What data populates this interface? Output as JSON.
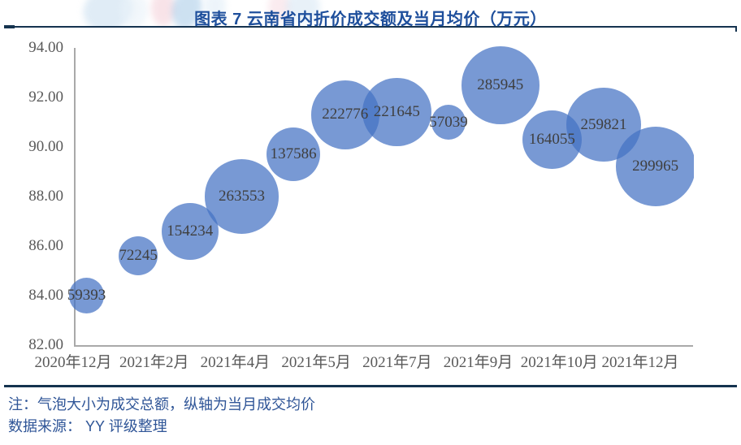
{
  "figure": {
    "title": "图表 7  云南省内折价成交额及当月均价（万元）",
    "note": "注：气泡大小为成交总额，纵轴为当月成交均价",
    "source": "数据来源： YY 评级整理"
  },
  "chart_data": {
    "type": "bubble",
    "title": "云南省内折价成交额及当月均价（万元）",
    "xlabel": "",
    "ylabel": "当月成交均价",
    "ylim": [
      82,
      94
    ],
    "ytick_step": 2,
    "yticks": [
      "94.00",
      "92.00",
      "90.00",
      "88.00",
      "86.00",
      "84.00",
      "82.00"
    ],
    "xticklabels": [
      "2020年12月",
      "2021年2月",
      "2021年4月",
      "2021年5月",
      "2021年7月",
      "2021年9月",
      "2021年10月",
      "2021年12月"
    ],
    "grid": false,
    "legend": false,
    "bubble_size_meaning": "成交总额（万元）",
    "points": [
      {
        "label": "59393",
        "amount": 59393,
        "avg_price": 84.0
      },
      {
        "label": "72245",
        "amount": 72245,
        "avg_price": 85.6
      },
      {
        "label": "154234",
        "amount": 154234,
        "avg_price": 86.6
      },
      {
        "label": "263553",
        "amount": 263553,
        "avg_price": 88.0
      },
      {
        "label": "137586",
        "amount": 137586,
        "avg_price": 89.7
      },
      {
        "label": "222776",
        "amount": 222776,
        "avg_price": 91.3
      },
      {
        "label": "221645",
        "amount": 221645,
        "avg_price": 91.4
      },
      {
        "label": "57039",
        "amount": 57039,
        "avg_price": 91.0
      },
      {
        "label": "285945",
        "amount": 285945,
        "avg_price": 92.5
      },
      {
        "label": "164055",
        "amount": 164055,
        "avg_price": 90.3
      },
      {
        "label": "259821",
        "amount": 259821,
        "avg_price": 90.9
      },
      {
        "label": "299965",
        "amount": 299965,
        "avg_price": 89.2
      }
    ],
    "colors": {
      "bubble": "#4472C4",
      "bubble_opacity": 0.72,
      "data_label": "#3F3F3F",
      "axis_text": "#595959",
      "axis_line": "#A9A9A9",
      "title": "#1E4F9C",
      "divider": "#15334F",
      "note": "#2F5597"
    }
  }
}
